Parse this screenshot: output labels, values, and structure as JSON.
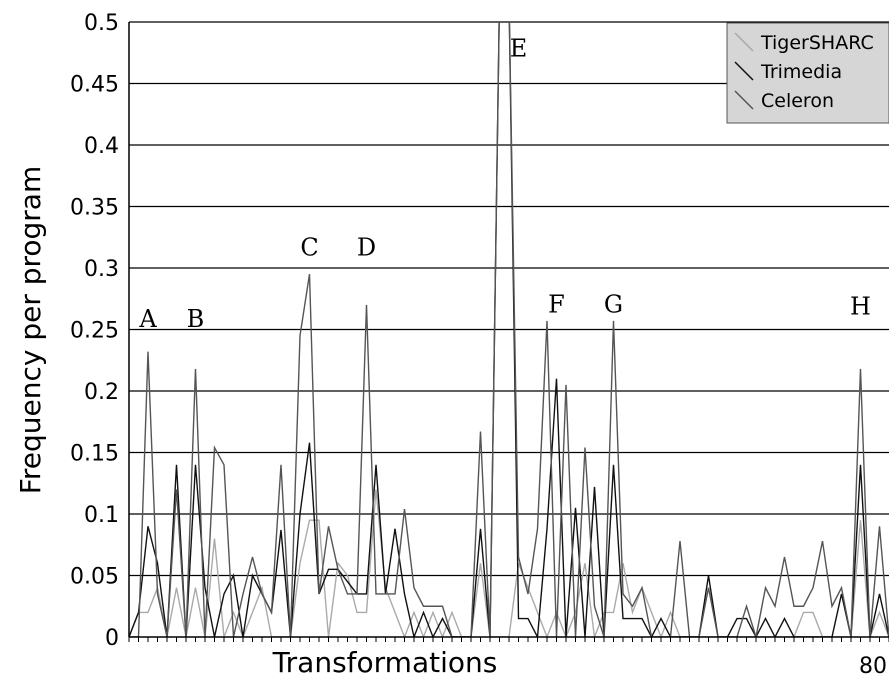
{
  "chart_data": {
    "type": "line",
    "xlabel": "Transformations",
    "ylabel": "Frequency per program",
    "x_tick_labels": [
      {
        "x": 80,
        "label": "80"
      }
    ],
    "xlim": [
      0,
      80
    ],
    "ylim": [
      0,
      0.5
    ],
    "y_ticks": [
      0,
      0.05,
      0.1,
      0.15,
      0.2,
      0.25,
      0.3,
      0.35,
      0.4,
      0.45,
      0.5
    ],
    "y_tick_labels": [
      "0",
      "0.05",
      "0.1",
      "0.15",
      "0.2",
      "0.25",
      "0.3",
      "0.35",
      "0.4",
      "0.45",
      "0.5"
    ],
    "grid": "horizontal",
    "legend_position": "top-right",
    "x": [
      0,
      1,
      2,
      3,
      4,
      5,
      6,
      7,
      8,
      9,
      10,
      11,
      12,
      13,
      14,
      15,
      16,
      17,
      18,
      19,
      20,
      21,
      22,
      23,
      24,
      25,
      26,
      27,
      28,
      29,
      30,
      31,
      32,
      33,
      34,
      35,
      36,
      37,
      38,
      39,
      40,
      41,
      42,
      43,
      44,
      45,
      46,
      47,
      48,
      49,
      50,
      51,
      52,
      53,
      54,
      55,
      56,
      57,
      58,
      59,
      60,
      61,
      62,
      63,
      64,
      65,
      66,
      67,
      68,
      69,
      70,
      71,
      72,
      73,
      74,
      75,
      76,
      77,
      78,
      79,
      80
    ],
    "series": [
      {
        "name": "TigerSHARC",
        "color": "#aaaaaa",
        "values": [
          0.0,
          0.02,
          0.02,
          0.04,
          0.0,
          0.04,
          0.0,
          0.04,
          0.0,
          0.08,
          0.0,
          0.02,
          0.0,
          0.02,
          0.04,
          0.0,
          0.0,
          0.0,
          0.06,
          0.095,
          0.095,
          0.0,
          0.06,
          0.05,
          0.02,
          0.02,
          0.12,
          0.04,
          0.02,
          0.0,
          0.02,
          0.0,
          0.02,
          0.0,
          0.02,
          0.0,
          0.0,
          0.06,
          0.0,
          0.0,
          0.0,
          0.06,
          0.04,
          0.02,
          0.0,
          0.02,
          0.0,
          0.02,
          0.06,
          0.0,
          0.02,
          0.02,
          0.06,
          0.02,
          0.04,
          0.02,
          0.0,
          0.02,
          0.0,
          0.0,
          0.0,
          0.0,
          0.0,
          0.0,
          0.0,
          0.0,
          0.0,
          0.0,
          0.0,
          0.0,
          0.0,
          0.02,
          0.02,
          0.0,
          0.0,
          0.0,
          0.0,
          0.095,
          0.0,
          0.02,
          0.0
        ]
      },
      {
        "name": "Trimedia",
        "color": "#111111",
        "values": [
          0.0,
          0.02,
          0.09,
          0.06,
          0.0,
          0.14,
          0.0,
          0.14,
          0.04,
          0.0,
          0.035,
          0.05,
          0.0,
          0.05,
          0.035,
          0.02,
          0.087,
          0.0,
          0.1,
          0.158,
          0.035,
          0.055,
          0.055,
          0.045,
          0.035,
          0.035,
          0.14,
          0.035,
          0.088,
          0.035,
          0.0,
          0.02,
          0.0,
          0.015,
          0.0,
          0.0,
          0.0,
          0.088,
          0.0,
          0.52,
          0.52,
          0.015,
          0.015,
          0.0,
          0.088,
          0.21,
          0.0,
          0.105,
          0.0,
          0.122,
          0.0,
          0.14,
          0.015,
          0.015,
          0.015,
          0.0,
          0.015,
          0.0,
          0.0,
          0.0,
          0.0,
          0.05,
          0.0,
          0.0,
          0.015,
          0.015,
          0.0,
          0.015,
          0.0,
          0.015,
          0.0,
          0.0,
          0.0,
          0.0,
          0.0,
          0.035,
          0.0,
          0.14,
          0.0,
          0.035,
          0.0
        ]
      },
      {
        "name": "Celeron",
        "color": "#555555",
        "values": [
          0.0,
          0.0,
          0.232,
          0.035,
          0.0,
          0.12,
          0.0,
          0.218,
          0.0,
          0.154,
          0.14,
          0.0,
          0.035,
          0.065,
          0.035,
          0.02,
          0.14,
          0.0,
          0.245,
          0.295,
          0.035,
          0.09,
          0.055,
          0.035,
          0.035,
          0.27,
          0.035,
          0.035,
          0.035,
          0.104,
          0.04,
          0.025,
          0.025,
          0.025,
          0.0,
          0.0,
          0.0,
          0.167,
          0.0,
          0.52,
          0.52,
          0.065,
          0.035,
          0.088,
          0.257,
          0.0,
          0.205,
          0.0,
          0.154,
          0.025,
          0.0,
          0.257,
          0.035,
          0.025,
          0.04,
          0.0,
          0.0,
          0.0,
          0.078,
          0.0,
          0.0,
          0.04,
          0.0,
          0.0,
          0.0,
          0.025,
          0.0,
          0.04,
          0.025,
          0.065,
          0.025,
          0.025,
          0.04,
          0.078,
          0.025,
          0.04,
          0.0,
          0.218,
          0.0,
          0.09,
          0.0
        ]
      }
    ],
    "annotations": [
      {
        "label": "A",
        "x": 2,
        "y": 0.252
      },
      {
        "label": "B",
        "x": 7,
        "y": 0.252
      },
      {
        "label": "C",
        "x": 19,
        "y": 0.31
      },
      {
        "label": "D",
        "x": 25,
        "y": 0.31
      },
      {
        "label": "E",
        "x": 41,
        "y": 0.472
      },
      {
        "label": "F",
        "x": 45,
        "y": 0.264
      },
      {
        "label": "G",
        "x": 51,
        "y": 0.264
      },
      {
        "label": "H",
        "x": 77,
        "y": 0.262
      }
    ]
  }
}
